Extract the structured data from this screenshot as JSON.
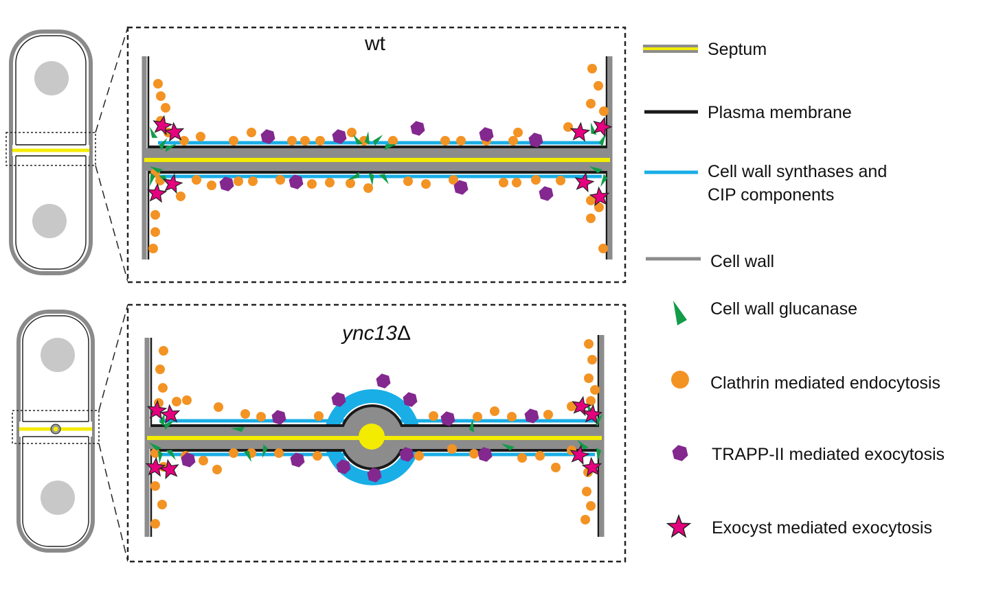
{
  "panels": {
    "top": {
      "title": "wt"
    },
    "bottom": {
      "title": "ync13",
      "title_symbol": "Δ"
    }
  },
  "legend": [
    {
      "id": "septum",
      "label": "Septum",
      "icon": "yellow-line-on-gray",
      "color": "#f4ec00"
    },
    {
      "id": "plasma-membrane",
      "label": "Plasma membrane",
      "icon": "black-line",
      "color": "#1a1a1a"
    },
    {
      "id": "cell-wall-synthases",
      "label": "Cell wall synthases and",
      "label2": "CIP components",
      "icon": "blue-line",
      "color": "#19aee6"
    },
    {
      "id": "cell-wall",
      "label": "Cell wall",
      "icon": "gray-line",
      "color": "#8c8c8c"
    },
    {
      "id": "cell-wall-glucanase",
      "label": "Cell wall glucanase",
      "icon": "green-triangle-icon",
      "color": "#129c4a"
    },
    {
      "id": "clathrin-endocytosis",
      "label": "Clathrin mediated endocytosis",
      "icon": "orange-circle-icon",
      "color": "#f39324"
    },
    {
      "id": "trapp-exocytosis",
      "label": "TRAPP-II mediated exocytosis",
      "icon": "purple-hexagon-icon",
      "color": "#83288f"
    },
    {
      "id": "exocyst-exocytosis",
      "label": "Exocyst mediated exocytosis",
      "icon": "pink-star-icon",
      "color": "#e5007e"
    }
  ]
}
